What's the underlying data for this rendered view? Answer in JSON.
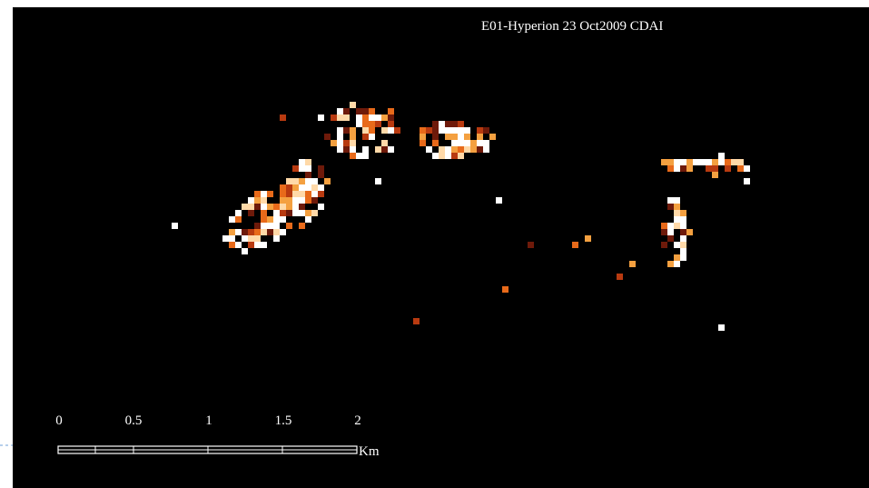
{
  "image": {
    "title": "E01-Hyperion 23 Oct2009 CDAI",
    "scale_bar": {
      "labels": [
        "0",
        "0.5",
        "1",
        "1.5",
        "2"
      ],
      "unit": "Km"
    }
  }
}
